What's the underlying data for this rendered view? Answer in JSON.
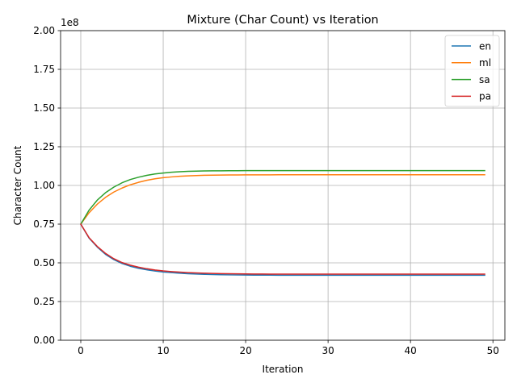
{
  "chart_data": {
    "type": "line",
    "title": "Mixture (Char Count) vs Iteration",
    "xlabel": "Iteration",
    "ylabel": "Character Count",
    "y_offset_label": "1e8",
    "xlim": [
      -2.45,
      51.45
    ],
    "ylim": [
      0,
      200000000
    ],
    "x_ticks": [
      0,
      10,
      20,
      30,
      40,
      50
    ],
    "x_tick_labels": [
      "0",
      "10",
      "20",
      "30",
      "40",
      "50"
    ],
    "y_ticks": [
      0,
      25000000,
      50000000,
      75000000,
      100000000,
      125000000,
      150000000,
      175000000,
      200000000
    ],
    "y_tick_labels": [
      "0.00",
      "0.25",
      "0.50",
      "0.75",
      "1.00",
      "1.25",
      "1.50",
      "1.75",
      "2.00"
    ],
    "grid": true,
    "legend_position": "top-right",
    "x_start": 0,
    "x_end": 49,
    "series": [
      {
        "name": "en",
        "color": "#1f77b4",
        "values": [
          75000000,
          66000000,
          60200000,
          55500000,
          52100000,
          49600000,
          47800000,
          46500000,
          45500000,
          44700000,
          44100000,
          43650000,
          43300000,
          43000000,
          42800000,
          42600000,
          42450000,
          42350000,
          42250000,
          42180000,
          42130000,
          42090000,
          42060000,
          42040000,
          42020000,
          42010000,
          42000000,
          42000000,
          42000000,
          42000000,
          42000000,
          42000000,
          42000000,
          42000000,
          42000000,
          42000000,
          42000000,
          42000000,
          42000000,
          42000000,
          42000000,
          42000000,
          42000000,
          42000000,
          42000000,
          42000000,
          42000000,
          42000000,
          42000000,
          42000000
        ]
      },
      {
        "name": "ml",
        "color": "#ff7f0e",
        "values": [
          75000000,
          82300000,
          87900000,
          92300000,
          95700000,
          98300000,
          100400000,
          102000000,
          103300000,
          104300000,
          105000000,
          105500000,
          105900000,
          106200000,
          106400000,
          106550000,
          106650000,
          106720000,
          106770000,
          106800000,
          106820000,
          106840000,
          106850000,
          106860000,
          106870000,
          106880000,
          106890000,
          106890000,
          106900000,
          106900000,
          106900000,
          106900000,
          106900000,
          106900000,
          106900000,
          106900000,
          106900000,
          106900000,
          106900000,
          106900000,
          106900000,
          106900000,
          106900000,
          106900000,
          106900000,
          106900000,
          106900000,
          106900000,
          106900000,
          106900000
        ]
      },
      {
        "name": "sa",
        "color": "#2ca02c",
        "values": [
          75000000,
          84000000,
          90500000,
          95300000,
          98900000,
          101700000,
          103800000,
          105300000,
          106500000,
          107400000,
          108000000,
          108500000,
          108850000,
          109100000,
          109250000,
          109350000,
          109420000,
          109470000,
          109500000,
          109520000,
          109540000,
          109550000,
          109560000,
          109570000,
          109580000,
          109590000,
          109600000,
          109600000,
          109600000,
          109600000,
          109600000,
          109600000,
          109600000,
          109600000,
          109600000,
          109600000,
          109600000,
          109600000,
          109600000,
          109600000,
          109600000,
          109600000,
          109600000,
          109600000,
          109600000,
          109600000,
          109600000,
          109600000,
          109600000,
          109600000
        ]
      },
      {
        "name": "pa",
        "color": "#d62728",
        "values": [
          75000000,
          66300000,
          60600000,
          56100000,
          52700000,
          50200000,
          48500000,
          47200000,
          46200000,
          45400000,
          44800000,
          44350000,
          44000000,
          43700000,
          43500000,
          43300000,
          43150000,
          43050000,
          42950000,
          42880000,
          42830000,
          42790000,
          42760000,
          42740000,
          42720000,
          42710000,
          42700000,
          42700000,
          42700000,
          42700000,
          42700000,
          42700000,
          42700000,
          42700000,
          42700000,
          42700000,
          42700000,
          42700000,
          42700000,
          42700000,
          42700000,
          42700000,
          42700000,
          42700000,
          42700000,
          42700000,
          42700000,
          42700000,
          42700000,
          42700000
        ]
      }
    ]
  }
}
